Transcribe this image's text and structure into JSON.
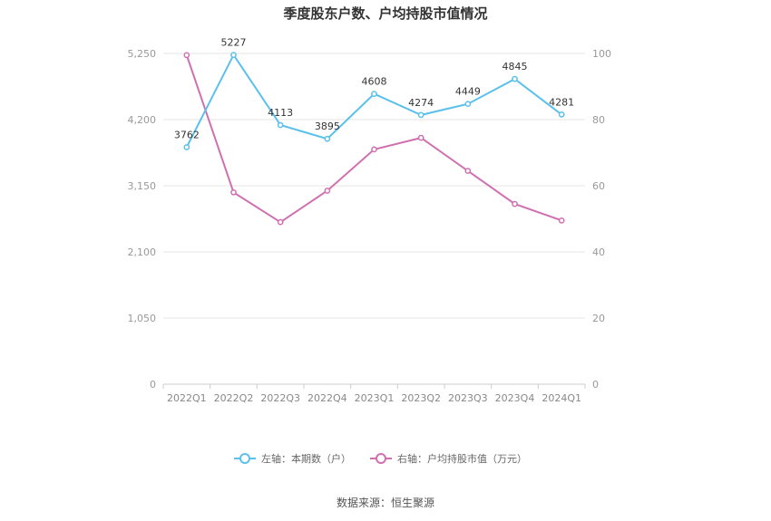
{
  "chart_data": {
    "type": "line",
    "title": "季度股东户数、户均持股市值情况",
    "categories": [
      "2022Q1",
      "2022Q2",
      "2022Q3",
      "2022Q4",
      "2023Q1",
      "2023Q2",
      "2023Q3",
      "2023Q4",
      "2024Q1"
    ],
    "series": [
      {
        "name": "左轴：本期数（户）",
        "axis": "left",
        "color": "#5bc0eb",
        "values": [
          3762,
          5227,
          4113,
          3895,
          4608,
          4274,
          4449,
          4845,
          4281
        ],
        "labels": [
          "3762",
          "5227",
          "4113",
          "3895",
          "4608",
          "4274",
          "4449",
          "4845",
          "4281"
        ]
      },
      {
        "name": "右轴：户均持股市值（万元）",
        "axis": "right",
        "color": "#d070b0",
        "values": [
          99.5,
          58.0,
          49.0,
          58.5,
          71.0,
          74.5,
          64.5,
          54.5,
          49.5
        ]
      }
    ],
    "y_left": {
      "min": 0,
      "max": 5250,
      "ticks": [
        0,
        1050,
        2100,
        3150,
        4200,
        5250
      ],
      "tick_labels": [
        "0",
        "1,050",
        "2,100",
        "3,150",
        "4,200",
        "5,250"
      ]
    },
    "y_right": {
      "min": 0,
      "max": 100,
      "ticks": [
        0,
        20,
        40,
        60,
        80,
        100
      ],
      "tick_labels": [
        "0",
        "20",
        "40",
        "60",
        "80",
        "100"
      ]
    },
    "grid": true,
    "legend_position": "bottom"
  },
  "footer": {
    "source": "数据来源：恒生聚源"
  }
}
